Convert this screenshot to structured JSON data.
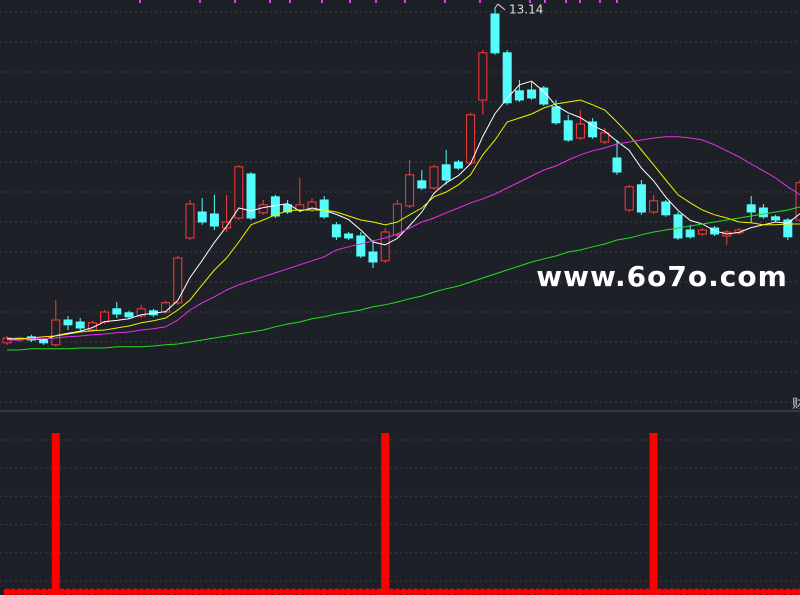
{
  "chart_data": [
    {
      "type": "candlestick",
      "up_color": "#ff3a3a",
      "down_color": "#54fcfc",
      "ylim": [
        3.09,
        13.34
      ],
      "high_label": "13.14",
      "watermark": "www.6o7o.com",
      "side_label": "财",
      "open": [
        4.77,
        4.84,
        4.92,
        4.84,
        4.72,
        5.34,
        5.29,
        5.09,
        5.29,
        5.62,
        5.52,
        5.44,
        5.57,
        5.54,
        5.77,
        7.39,
        8.04,
        7.99,
        7.64,
        7.89,
        8.99,
        8.02,
        8.42,
        8.22,
        8.09,
        8.09,
        8.34,
        7.72,
        7.49,
        7.44,
        7.04,
        6.82,
        7.47,
        8.19,
        8.82,
        8.64,
        9.22,
        9.29,
        9.27,
        10.84,
        12.99,
        12.02,
        11.07,
        11.09,
        11.14,
        10.67,
        10.32,
        9.89,
        10.29,
        9.79,
        9.39,
        8.09,
        8.72,
        8.04,
        8.29,
        7.97,
        7.59,
        7.49,
        7.64,
        7.44,
        7.52,
        8.22,
        8.14,
        7.92,
        7.84,
        7.84
      ],
      "high": [
        4.94,
        4.92,
        4.97,
        4.89,
        5.84,
        5.44,
        5.39,
        5.32,
        5.59,
        5.79,
        5.57,
        5.72,
        5.62,
        5.82,
        6.94,
        8.34,
        8.39,
        8.47,
        8.47,
        9.22,
        9.04,
        8.34,
        8.47,
        8.34,
        8.89,
        8.39,
        8.44,
        7.79,
        7.54,
        7.54,
        7.34,
        7.64,
        8.34,
        9.34,
        9.09,
        9.22,
        9.59,
        9.34,
        10.52,
        12.09,
        13.14,
        12.09,
        11.34,
        11.29,
        11.19,
        10.84,
        10.47,
        10.59,
        10.39,
        10.14,
        9.84,
        8.72,
        8.84,
        8.47,
        8.34,
        8.04,
        7.72,
        7.64,
        7.69,
        7.59,
        7.64,
        8.44,
        8.24,
        7.97,
        7.89,
        8.84
      ],
      "low": [
        4.72,
        4.79,
        4.79,
        4.72,
        4.67,
        5.09,
        5.04,
        5.04,
        5.24,
        5.39,
        5.37,
        5.39,
        5.42,
        5.49,
        5.72,
        7.34,
        7.72,
        7.59,
        7.54,
        7.84,
        7.84,
        7.97,
        7.89,
        7.99,
        8.04,
        8.04,
        7.87,
        7.34,
        7.34,
        6.89,
        6.64,
        6.77,
        7.42,
        8.14,
        8.59,
        8.59,
        8.72,
        9.09,
        9.22,
        10.47,
        11.97,
        10.72,
        10.79,
        10.84,
        10.69,
        10.22,
        9.79,
        9.84,
        9.87,
        9.74,
        8.97,
        8.04,
        7.97,
        7.99,
        7.92,
        7.34,
        7.37,
        7.44,
        7.44,
        7.22,
        7.47,
        7.79,
        7.87,
        7.79,
        7.34,
        7.79
      ],
      "close": [
        4.89,
        4.89,
        4.84,
        4.77,
        5.34,
        5.22,
        5.14,
        5.27,
        5.54,
        5.49,
        5.42,
        5.62,
        5.47,
        5.77,
        6.89,
        8.24,
        7.79,
        7.69,
        7.79,
        9.17,
        7.89,
        8.22,
        7.94,
        8.04,
        8.22,
        8.29,
        7.92,
        7.42,
        7.39,
        6.94,
        6.79,
        7.54,
        8.24,
        8.97,
        8.64,
        9.17,
        8.84,
        9.14,
        10.47,
        12.02,
        12.02,
        10.77,
        10.84,
        10.89,
        10.74,
        10.27,
        9.84,
        10.24,
        9.92,
        10.02,
        9.04,
        8.67,
        8.04,
        8.32,
        7.97,
        7.39,
        7.42,
        7.59,
        7.49,
        7.54,
        7.59,
        8.04,
        7.92,
        7.84,
        7.42,
        8.77
      ],
      "series": [
        {
          "color": "#ffffff",
          "values": [
            4.87,
            4.87,
            4.87,
            4.84,
            4.95,
            5.01,
            5.06,
            5.15,
            5.3,
            5.33,
            5.37,
            5.47,
            5.51,
            5.55,
            5.83,
            6.4,
            6.83,
            7.28,
            7.68,
            8.14,
            8.07,
            8.15,
            8.2,
            8.25,
            8.06,
            8.14,
            8.08,
            7.98,
            7.85,
            7.59,
            7.29,
            7.22,
            7.38,
            7.7,
            8.04,
            8.51,
            8.77,
            8.95,
            9.25,
            9.93,
            10.5,
            10.88,
            11.22,
            11.31,
            11.05,
            10.7,
            10.52,
            10.4,
            10.2,
            10.06,
            9.81,
            9.58,
            9.14,
            8.82,
            8.41,
            8.08,
            7.83,
            7.74,
            7.57,
            7.49,
            7.53,
            7.65,
            7.72,
            7.79,
            7.76,
            8.0
          ]
        },
        {
          "color": "#f0f000",
          "values": [
            4.84,
            4.87,
            4.89,
            4.92,
            4.94,
            4.99,
            5.04,
            5.07,
            5.09,
            5.14,
            5.19,
            5.27,
            5.32,
            5.39,
            5.59,
            5.84,
            6.22,
            6.59,
            6.89,
            7.29,
            7.72,
            7.84,
            7.97,
            8.07,
            8.09,
            8.09,
            8.09,
            8.04,
            7.94,
            7.84,
            7.79,
            7.72,
            7.79,
            7.97,
            8.14,
            8.42,
            8.54,
            8.72,
            8.97,
            9.47,
            9.84,
            10.29,
            10.39,
            10.49,
            10.64,
            10.74,
            10.79,
            10.84,
            10.72,
            10.59,
            10.29,
            9.97,
            9.59,
            9.22,
            8.84,
            8.47,
            8.27,
            8.09,
            7.97,
            7.89,
            7.79,
            7.77,
            7.72,
            7.72,
            7.74,
            7.74
          ]
        },
        {
          "color": "#e632e6",
          "values": [
            4.84,
            4.84,
            4.87,
            4.87,
            4.89,
            4.92,
            4.94,
            4.97,
            4.99,
            5.02,
            5.04,
            5.09,
            5.12,
            5.17,
            5.34,
            5.59,
            5.77,
            5.92,
            6.09,
            6.22,
            6.32,
            6.42,
            6.52,
            6.62,
            6.72,
            6.82,
            6.92,
            7.09,
            7.17,
            7.24,
            7.32,
            7.39,
            7.49,
            7.64,
            7.79,
            7.89,
            8.02,
            8.14,
            8.27,
            8.37,
            8.49,
            8.64,
            8.79,
            8.94,
            9.09,
            9.19,
            9.34,
            9.47,
            9.57,
            9.64,
            9.74,
            9.79,
            9.84,
            9.89,
            9.92,
            9.92,
            9.89,
            9.84,
            9.72,
            9.57,
            9.42,
            9.24,
            9.07,
            8.89,
            8.67,
            8.47
          ]
        },
        {
          "color": "#22dd22",
          "values": [
            4.59,
            4.59,
            4.62,
            4.62,
            4.62,
            4.62,
            4.64,
            4.64,
            4.64,
            4.67,
            4.67,
            4.67,
            4.69,
            4.72,
            4.74,
            4.79,
            4.84,
            4.89,
            4.94,
            4.99,
            5.04,
            5.09,
            5.17,
            5.24,
            5.29,
            5.37,
            5.42,
            5.49,
            5.54,
            5.59,
            5.67,
            5.72,
            5.79,
            5.87,
            5.94,
            6.04,
            6.12,
            6.19,
            6.29,
            6.39,
            6.49,
            6.59,
            6.69,
            6.79,
            6.87,
            6.94,
            7.04,
            7.09,
            7.17,
            7.24,
            7.34,
            7.39,
            7.47,
            7.54,
            7.59,
            7.64,
            7.69,
            7.74,
            7.79,
            7.84,
            7.89,
            7.94,
            7.99,
            8.04,
            8.09,
            8.17
          ]
        }
      ]
    },
    {
      "type": "bar",
      "color": "#ff0000",
      "ylim": [
        0,
        1
      ],
      "values": [
        0,
        0,
        0,
        0,
        1,
        0,
        0,
        0,
        0,
        0,
        0,
        0,
        0,
        0,
        0,
        0,
        0,
        0,
        0,
        0,
        0,
        0,
        0,
        0,
        0,
        0,
        0,
        0,
        0,
        0,
        0,
        1,
        0,
        0,
        0,
        0,
        0,
        0,
        0,
        0,
        0,
        0,
        0,
        0,
        0,
        0,
        0,
        0,
        0,
        0,
        0,
        0,
        0,
        1,
        0,
        0,
        0,
        0,
        0,
        0,
        0,
        0,
        0,
        0,
        0,
        0
      ]
    }
  ]
}
